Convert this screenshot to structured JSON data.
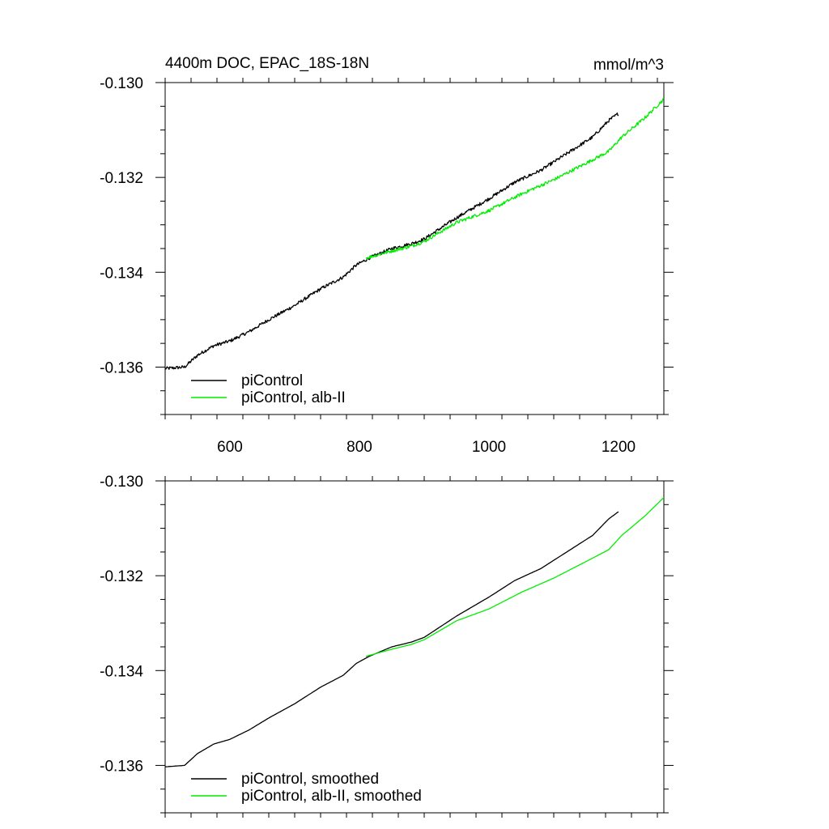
{
  "figure": {
    "title_left": "4400m DOC, EPAC_18S-18N",
    "title_right": "mmol/m^3"
  },
  "chart_data": [
    {
      "type": "line",
      "title": "4400m DOC, EPAC_18S-18N",
      "units": "mmol/m^3",
      "xlim": [
        500,
        1270
      ],
      "ylim": [
        -0.137,
        -0.13
      ],
      "xticks": [
        600,
        800,
        1000,
        1200
      ],
      "xtick_labels": [
        "600",
        "800",
        "1000",
        "1200"
      ],
      "yticks": [
        -0.136,
        -0.134,
        -0.132,
        -0.13
      ],
      "ytick_labels": [
        "-0.136",
        "-0.134",
        "-0.132",
        "-0.130"
      ],
      "show_xtick_labels": true,
      "noisy": true,
      "legend_placement": "bottom-left",
      "series": [
        {
          "name": "piControl",
          "color": "#000000",
          "points": [
            [
              500,
              -0.13603
            ],
            [
              530,
              -0.136
            ],
            [
              550,
              -0.13575
            ],
            [
              575,
              -0.13555
            ],
            [
              600,
              -0.13545
            ],
            [
              630,
              -0.13525
            ],
            [
              660,
              -0.135
            ],
            [
              700,
              -0.1347
            ],
            [
              740,
              -0.13435
            ],
            [
              775,
              -0.1341
            ],
            [
              795,
              -0.13385
            ],
            [
              815,
              -0.1337
            ],
            [
              850,
              -0.1335
            ],
            [
              880,
              -0.1334
            ],
            [
              900,
              -0.1333
            ],
            [
              950,
              -0.13285
            ],
            [
              1000,
              -0.13245
            ],
            [
              1040,
              -0.1321
            ],
            [
              1080,
              -0.13185
            ],
            [
              1120,
              -0.1315
            ],
            [
              1160,
              -0.13115
            ],
            [
              1185,
              -0.1308
            ],
            [
              1200,
              -0.13065
            ]
          ]
        },
        {
          "name": "piControl, alb-II",
          "color": "#00ee00",
          "points": [
            [
              810,
              -0.1337
            ],
            [
              850,
              -0.13355
            ],
            [
              880,
              -0.13345
            ],
            [
              900,
              -0.13335
            ],
            [
              950,
              -0.13295
            ],
            [
              1000,
              -0.1327
            ],
            [
              1050,
              -0.13235
            ],
            [
              1100,
              -0.13205
            ],
            [
              1150,
              -0.1317
            ],
            [
              1185,
              -0.13145
            ],
            [
              1205,
              -0.13115
            ],
            [
              1240,
              -0.13075
            ],
            [
              1270,
              -0.13035
            ]
          ]
        }
      ]
    },
    {
      "type": "line",
      "title": "",
      "xlim": [
        500,
        1270
      ],
      "ylim": [
        -0.137,
        -0.13
      ],
      "xticks": [
        600,
        800,
        1000,
        1200
      ],
      "yticks": [
        -0.136,
        -0.134,
        -0.132,
        -0.13
      ],
      "ytick_labels": [
        "-0.136",
        "-0.134",
        "-0.132",
        "-0.130"
      ],
      "show_xtick_labels": false,
      "noisy": false,
      "legend_placement": "bottom-left",
      "series": [
        {
          "name": "piControl, smoothed",
          "color": "#000000",
          "points": [
            [
              500,
              -0.13603
            ],
            [
              530,
              -0.136
            ],
            [
              550,
              -0.13575
            ],
            [
              575,
              -0.13555
            ],
            [
              600,
              -0.13545
            ],
            [
              630,
              -0.13525
            ],
            [
              660,
              -0.135
            ],
            [
              700,
              -0.1347
            ],
            [
              740,
              -0.13435
            ],
            [
              775,
              -0.1341
            ],
            [
              795,
              -0.13385
            ],
            [
              815,
              -0.1337
            ],
            [
              850,
              -0.1335
            ],
            [
              880,
              -0.1334
            ],
            [
              900,
              -0.1333
            ],
            [
              950,
              -0.13285
            ],
            [
              1000,
              -0.13245
            ],
            [
              1040,
              -0.1321
            ],
            [
              1080,
              -0.13185
            ],
            [
              1120,
              -0.1315
            ],
            [
              1160,
              -0.13115
            ],
            [
              1185,
              -0.1308
            ],
            [
              1200,
              -0.13065
            ]
          ]
        },
        {
          "name": "piControl, alb-II, smoothed",
          "color": "#00ee00",
          "points": [
            [
              810,
              -0.1337
            ],
            [
              850,
              -0.13355
            ],
            [
              880,
              -0.13345
            ],
            [
              900,
              -0.13335
            ],
            [
              950,
              -0.13295
            ],
            [
              1000,
              -0.1327
            ],
            [
              1050,
              -0.13235
            ],
            [
              1100,
              -0.13205
            ],
            [
              1150,
              -0.1317
            ],
            [
              1185,
              -0.13145
            ],
            [
              1205,
              -0.13115
            ],
            [
              1240,
              -0.13075
            ],
            [
              1270,
              -0.13035
            ]
          ]
        }
      ]
    }
  ]
}
